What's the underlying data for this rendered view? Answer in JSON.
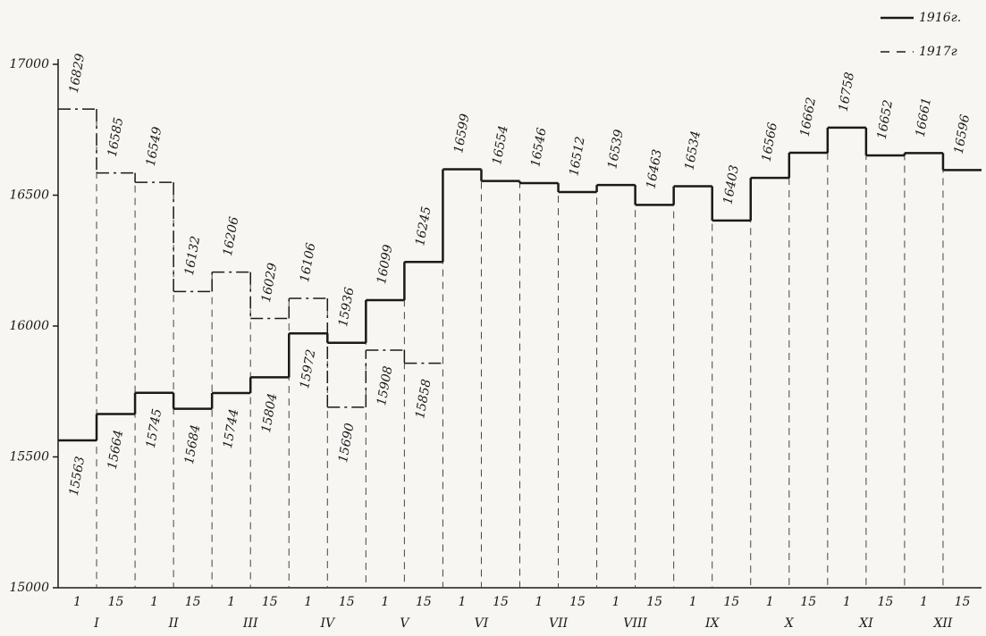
{
  "chart_data": {
    "type": "step",
    "categories": [
      "1",
      "15",
      "1",
      "15",
      "1",
      "15",
      "1",
      "15",
      "1",
      "15",
      "1",
      "15",
      "1",
      "15",
      "1",
      "15",
      "1",
      "15",
      "1",
      "15",
      "1",
      "15",
      "1",
      "15"
    ],
    "groups": [
      "I",
      "II",
      "III",
      "IV",
      "V",
      "VI",
      "VII",
      "VIII",
      "IX",
      "X",
      "XI",
      "XII"
    ],
    "series": [
      {
        "name": "1916г.",
        "color": "#1a1a1a",
        "style": "solid",
        "values": [
          15563,
          15664,
          15745,
          15684,
          15744,
          15804,
          15972,
          15936,
          16099,
          16245,
          16599,
          16554,
          16546,
          16512,
          16539,
          16463,
          16534,
          16403,
          16566,
          16662,
          16758,
          16652,
          16661,
          16596
        ]
      },
      {
        "name": "1917г",
        "color": "#1a1a1a",
        "style": "dashdot",
        "values": [
          16829,
          16585,
          16549,
          16132,
          16206,
          16029,
          16106,
          15690,
          15908,
          15858,
          null,
          null,
          null,
          null,
          null,
          null,
          null,
          null,
          null,
          null,
          null,
          null,
          null,
          null
        ]
      }
    ],
    "ylim": [
      15000,
      17000
    ],
    "yticks": [
      15000,
      15500,
      16000,
      16500,
      17000
    ]
  }
}
